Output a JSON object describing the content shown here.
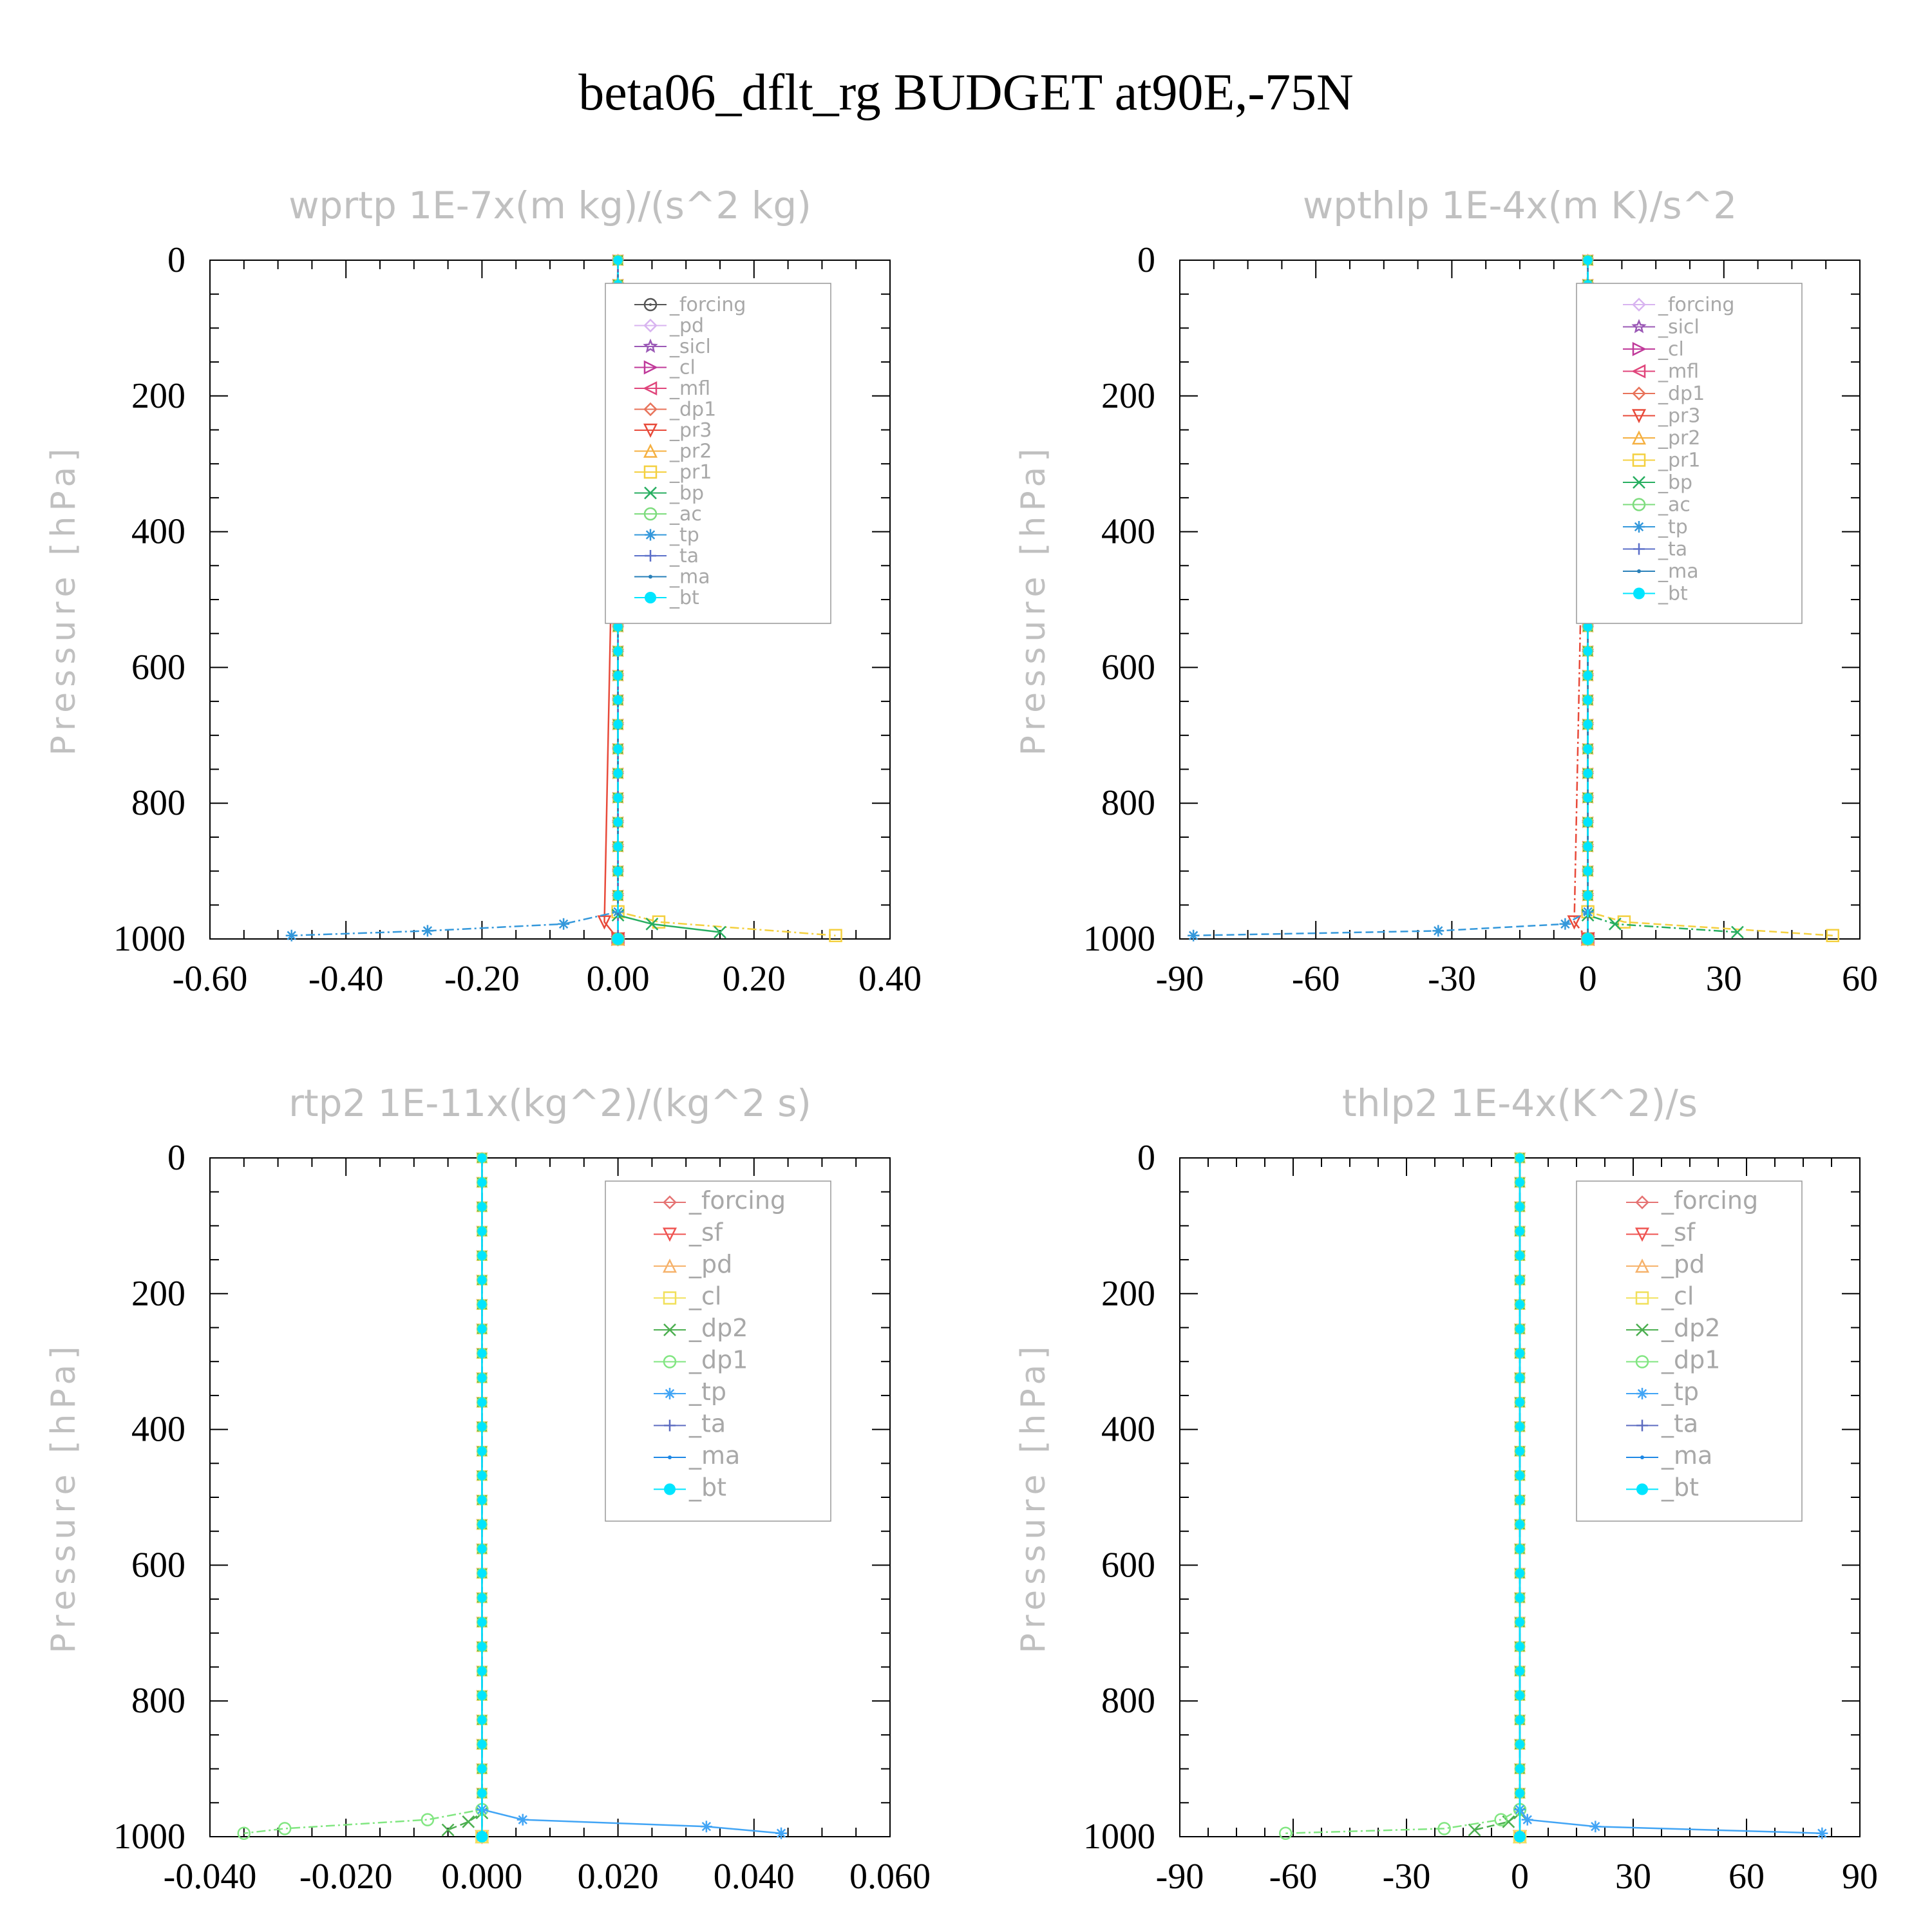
{
  "title": "beta06_dflt_rg  BUDGET at90E,-75N",
  "colors": {
    "forcing": "#555555",
    "pd": "#d8b4f0",
    "sicl": "#9b59b6",
    "cl": "#c0399a",
    "mfl": "#e0457b",
    "dp1": "#e8735a",
    "pr3": "#e84a3a",
    "pr2": "#f5b041",
    "pr1": "#f4d03f",
    "bp": "#27ae60",
    "ac": "#7ddc7d",
    "tp": "#3498db",
    "ta": "#5b6fc9",
    "ma": "#2980b9",
    "bt": "#00e5ff",
    "forcing_b": "#e57373",
    "sf": "#ef5350",
    "pd_b": "#f6b26b",
    "cl_b": "#f1e05a",
    "dp2": "#4caf50",
    "dp1_b": "#81e681",
    "tp_b": "#42a5f5",
    "ta_b": "#5c6bc0",
    "ma_b": "#1e88e5"
  },
  "chart_data": [
    {
      "type": "line",
      "title": "wprtp  1E-7x(m kg)/(s^2 kg)",
      "ylabel": "Pressure [hPa]",
      "xlim": [
        -0.6,
        0.4
      ],
      "ylim": [
        1000,
        0
      ],
      "xticks": [
        "-0.60",
        "-0.40",
        "-0.20",
        "0.00",
        "0.20",
        "0.40"
      ],
      "yticks": [
        "0",
        "200",
        "400",
        "600",
        "800",
        "1000"
      ],
      "legend_position": "top-right",
      "series": [
        {
          "name": "_forcing",
          "color_key": "forcing",
          "marker": "circle-dot",
          "x": [
            0,
            0
          ],
          "y": [
            0,
            1000
          ]
        },
        {
          "name": "_pd",
          "color_key": "pd",
          "marker": "diamond",
          "x": [
            0,
            0
          ],
          "y": [
            0,
            1000
          ]
        },
        {
          "name": "_sicl",
          "color_key": "sicl",
          "marker": "star",
          "x": [
            0,
            0
          ],
          "y": [
            0,
            1000
          ]
        },
        {
          "name": "_cl",
          "color_key": "cl",
          "marker": "tri-right",
          "x": [
            0,
            0
          ],
          "y": [
            0,
            1000
          ]
        },
        {
          "name": "_mfl",
          "color_key": "mfl",
          "marker": "tri-left",
          "x": [
            0,
            0
          ],
          "y": [
            0,
            1000
          ]
        },
        {
          "name": "_dp1",
          "color_key": "dp1",
          "marker": "diamond",
          "x": [
            0,
            0
          ],
          "y": [
            0,
            1000
          ]
        },
        {
          "name": "_pr3",
          "color_key": "pr3",
          "marker": "tri-down",
          "x": [
            0,
            -0.02,
            0
          ],
          "y": [
            0,
            975,
            1000
          ]
        },
        {
          "name": "_pr2",
          "color_key": "pr2",
          "marker": "tri-up",
          "x": [
            0,
            0
          ],
          "y": [
            0,
            1000
          ]
        },
        {
          "name": "_pr1",
          "color_key": "pr1",
          "marker": "square",
          "x": [
            0,
            0.0,
            0.06,
            0.32
          ],
          "y": [
            0,
            960,
            975,
            995
          ]
        },
        {
          "name": "_bp",
          "color_key": "bp",
          "marker": "x",
          "x": [
            0,
            0.0,
            0.05,
            0.15
          ],
          "y": [
            0,
            965,
            978,
            990
          ]
        },
        {
          "name": "_ac",
          "color_key": "ac",
          "marker": "circle",
          "x": [
            0,
            0
          ],
          "y": [
            0,
            1000
          ]
        },
        {
          "name": "_tp",
          "color_key": "tp",
          "marker": "asterisk",
          "x": [
            0,
            0.0,
            -0.08,
            -0.28,
            -0.48
          ],
          "y": [
            0,
            960,
            978,
            988,
            995
          ]
        },
        {
          "name": "_ta",
          "color_key": "ta",
          "marker": "plus",
          "x": [
            0,
            0
          ],
          "y": [
            0,
            1000
          ]
        },
        {
          "name": "_ma",
          "color_key": "ma",
          "marker": "dot",
          "x": [
            0,
            0
          ],
          "y": [
            0,
            1000
          ]
        },
        {
          "name": "_bt",
          "color_key": "bt",
          "marker": "filled-circle",
          "x": [
            0,
            0
          ],
          "y": [
            0,
            1000
          ]
        }
      ]
    },
    {
      "type": "line",
      "title": "wpthlp  1E-4x(m K)/s^2",
      "ylabel": "Pressure [hPa]",
      "xlim": [
        -90,
        60
      ],
      "ylim": [
        1000,
        0
      ],
      "xticks": [
        "-90",
        "-60",
        "-30",
        "0",
        "30",
        "60"
      ],
      "yticks": [
        "0",
        "200",
        "400",
        "600",
        "800",
        "1000"
      ],
      "legend_position": "top-right",
      "series": [
        {
          "name": "_forcing",
          "color_key": "pd",
          "marker": "diamond",
          "x": [
            0,
            0
          ],
          "y": [
            0,
            1000
          ]
        },
        {
          "name": "_sicl",
          "color_key": "sicl",
          "marker": "star",
          "x": [
            0,
            0
          ],
          "y": [
            0,
            1000
          ]
        },
        {
          "name": "_cl",
          "color_key": "cl",
          "marker": "tri-right",
          "x": [
            0,
            0
          ],
          "y": [
            0,
            1000
          ]
        },
        {
          "name": "_mfl",
          "color_key": "mfl",
          "marker": "tri-left",
          "x": [
            0,
            0
          ],
          "y": [
            0,
            1000
          ]
        },
        {
          "name": "_dp1",
          "color_key": "dp1",
          "marker": "diamond",
          "x": [
            0,
            0
          ],
          "y": [
            0,
            1000
          ]
        },
        {
          "name": "_pr3",
          "color_key": "pr3",
          "marker": "tri-down",
          "x": [
            0,
            -3,
            0
          ],
          "y": [
            0,
            975,
            1000
          ]
        },
        {
          "name": "_pr2",
          "color_key": "pr2",
          "marker": "tri-up",
          "x": [
            0,
            0
          ],
          "y": [
            0,
            1000
          ]
        },
        {
          "name": "_pr1",
          "color_key": "pr1",
          "marker": "square",
          "x": [
            0,
            0,
            8,
            54
          ],
          "y": [
            0,
            960,
            975,
            995
          ]
        },
        {
          "name": "_bp",
          "color_key": "bp",
          "marker": "x",
          "x": [
            0,
            0,
            6,
            33
          ],
          "y": [
            0,
            965,
            978,
            990
          ]
        },
        {
          "name": "_ac",
          "color_key": "ac",
          "marker": "circle",
          "x": [
            0,
            0
          ],
          "y": [
            0,
            1000
          ]
        },
        {
          "name": "_tp",
          "color_key": "tp",
          "marker": "asterisk",
          "x": [
            0,
            0,
            -5,
            -33,
            -87
          ],
          "y": [
            0,
            960,
            978,
            988,
            995
          ]
        },
        {
          "name": "_ta",
          "color_key": "ta",
          "marker": "plus",
          "x": [
            0,
            0
          ],
          "y": [
            0,
            1000
          ]
        },
        {
          "name": "_ma",
          "color_key": "ma",
          "marker": "dot",
          "x": [
            0,
            0
          ],
          "y": [
            0,
            1000
          ]
        },
        {
          "name": "_bt",
          "color_key": "bt",
          "marker": "filled-circle",
          "x": [
            0,
            0
          ],
          "y": [
            0,
            1000
          ]
        }
      ]
    },
    {
      "type": "line",
      "title": "rtp2  1E-11x(kg^2)/(kg^2 s)",
      "ylabel": "Pressure [hPa]",
      "xlim": [
        -0.04,
        0.06
      ],
      "ylim": [
        1000,
        0
      ],
      "xticks": [
        "-0.040",
        "-0.020",
        "0.000",
        "0.020",
        "0.040",
        "0.060"
      ],
      "yticks": [
        "0",
        "200",
        "400",
        "600",
        "800",
        "1000"
      ],
      "legend_position": "top-right",
      "series": [
        {
          "name": "_forcing",
          "color_key": "forcing_b",
          "marker": "diamond",
          "x": [
            0,
            0
          ],
          "y": [
            0,
            1000
          ]
        },
        {
          "name": "_sf",
          "color_key": "sf",
          "marker": "tri-down",
          "x": [
            0,
            0
          ],
          "y": [
            0,
            1000
          ]
        },
        {
          "name": "_pd",
          "color_key": "pd_b",
          "marker": "tri-up",
          "x": [
            0,
            0
          ],
          "y": [
            0,
            1000
          ]
        },
        {
          "name": "_cl",
          "color_key": "cl_b",
          "marker": "square",
          "x": [
            0,
            0
          ],
          "y": [
            0,
            1000
          ]
        },
        {
          "name": "_dp2",
          "color_key": "dp2",
          "marker": "x",
          "x": [
            0,
            0,
            -0.002,
            -0.005
          ],
          "y": [
            0,
            965,
            978,
            990
          ]
        },
        {
          "name": "_dp1",
          "color_key": "dp1_b",
          "marker": "circle",
          "x": [
            0,
            0,
            -0.008,
            -0.029,
            -0.035
          ],
          "y": [
            0,
            960,
            975,
            988,
            995
          ]
        },
        {
          "name": "_tp",
          "color_key": "tp_b",
          "marker": "asterisk",
          "x": [
            0,
            0,
            0.006,
            0.033,
            0.044
          ],
          "y": [
            0,
            960,
            975,
            985,
            995
          ]
        },
        {
          "name": "_ta",
          "color_key": "ta_b",
          "marker": "plus",
          "x": [
            0,
            0
          ],
          "y": [
            0,
            1000
          ]
        },
        {
          "name": "_ma",
          "color_key": "ma_b",
          "marker": "dot",
          "x": [
            0,
            0
          ],
          "y": [
            0,
            1000
          ]
        },
        {
          "name": "_bt",
          "color_key": "bt",
          "marker": "filled-circle",
          "x": [
            0,
            0
          ],
          "y": [
            0,
            1000
          ]
        }
      ]
    },
    {
      "type": "line",
      "title": "thlp2  1E-4x(K^2)/s",
      "ylabel": "Pressure [hPa]",
      "xlim": [
        -90,
        90
      ],
      "ylim": [
        1000,
        0
      ],
      "xticks": [
        "-90",
        "-60",
        "-30",
        "0",
        "30",
        "60",
        "90"
      ],
      "yticks": [
        "0",
        "200",
        "400",
        "600",
        "800",
        "1000"
      ],
      "legend_position": "top-right",
      "series": [
        {
          "name": "_forcing",
          "color_key": "forcing_b",
          "marker": "diamond",
          "x": [
            0,
            0
          ],
          "y": [
            0,
            1000
          ]
        },
        {
          "name": "_sf",
          "color_key": "sf",
          "marker": "tri-down",
          "x": [
            0,
            0
          ],
          "y": [
            0,
            1000
          ]
        },
        {
          "name": "_pd",
          "color_key": "pd_b",
          "marker": "tri-up",
          "x": [
            0,
            0
          ],
          "y": [
            0,
            1000
          ]
        },
        {
          "name": "_cl",
          "color_key": "cl_b",
          "marker": "square",
          "x": [
            0,
            0
          ],
          "y": [
            0,
            1000
          ]
        },
        {
          "name": "_dp2",
          "color_key": "dp2",
          "marker": "x",
          "x": [
            0,
            0,
            -3,
            -12
          ],
          "y": [
            0,
            965,
            978,
            990
          ]
        },
        {
          "name": "_dp1",
          "color_key": "dp1_b",
          "marker": "circle",
          "x": [
            0,
            0,
            -5,
            -20,
            -62
          ],
          "y": [
            0,
            960,
            975,
            988,
            995
          ]
        },
        {
          "name": "_tp",
          "color_key": "tp_b",
          "marker": "asterisk",
          "x": [
            0,
            0,
            2,
            20,
            80
          ],
          "y": [
            0,
            960,
            975,
            985,
            995
          ]
        },
        {
          "name": "_ta",
          "color_key": "ta_b",
          "marker": "plus",
          "x": [
            0,
            0
          ],
          "y": [
            0,
            1000
          ]
        },
        {
          "name": "_ma",
          "color_key": "ma_b",
          "marker": "dot",
          "x": [
            0,
            0
          ],
          "y": [
            0,
            1000
          ]
        },
        {
          "name": "_bt",
          "color_key": "bt",
          "marker": "filled-circle",
          "x": [
            0,
            0
          ],
          "y": [
            0,
            1000
          ]
        }
      ]
    }
  ]
}
